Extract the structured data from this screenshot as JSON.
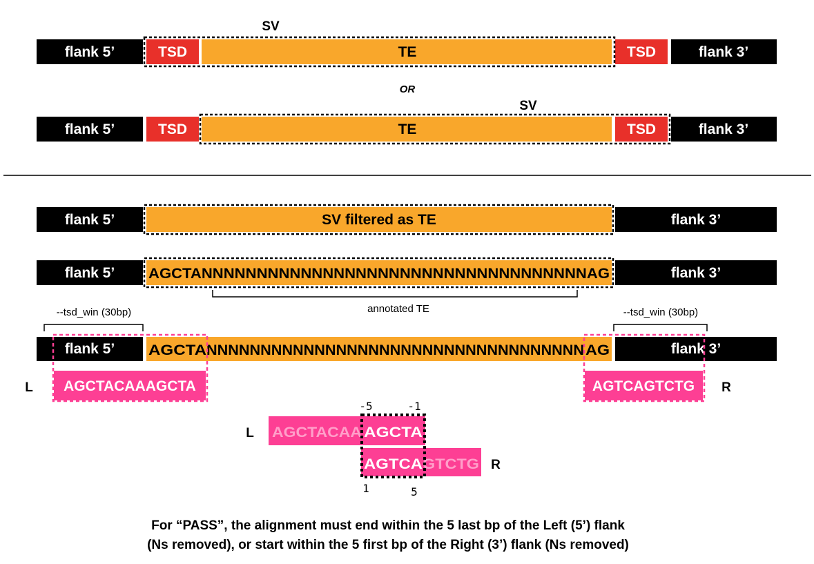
{
  "colors": {
    "flank": "#000000",
    "tsd": "#e8302a",
    "te": "#f9a72b",
    "pink": "#fd3f94",
    "faded_text": "#ff9fc9"
  },
  "top": {
    "sv_label": "SV",
    "or_label": "OR",
    "flank5": "flank 5’",
    "flank3": "flank 3’",
    "tsd": "TSD",
    "te": "TE"
  },
  "bottom": {
    "flank5": "flank 5’",
    "flank3": "flank 3’",
    "sv_filtered": "SV filtered as TE",
    "sequence": "AGCTANNNNNNNNNNNNNNNNNNNNNNNNNNNNNNNNNNNAG",
    "annotated_te": "annotated TE",
    "seq_row5_left": "AGCTA",
    "seq_row5_mid": "NNNNNNNNNNNNNNNNNNNNNNNNNNNNNNNNNNN",
    "seq_row5_right": "AG",
    "tsd_win_left": "--tsd_win (30bp)",
    "tsd_win_right": "--tsd_win (30bp)",
    "left_seq": "AGCTACAAAGCTA",
    "right_seq": "AGTCAGTCTG",
    "L": "L",
    "R": "R"
  },
  "alignment": {
    "L": "L",
    "R": "R",
    "left_faded": "AGCTACAA",
    "left_match": "AGCTA",
    "right_match": "AGTCA",
    "right_faded": "GTCTG",
    "tick_m5": "-5",
    "tick_m1": "-1",
    "tick_1": "1",
    "tick_5": "5"
  },
  "caption": {
    "line1": "For “PASS”, the alignment must end within the 5 last bp of the Left (5’) flank",
    "line2": "(Ns removed), or start within the 5 first bp of the Right (3’) flank (Ns removed)"
  }
}
